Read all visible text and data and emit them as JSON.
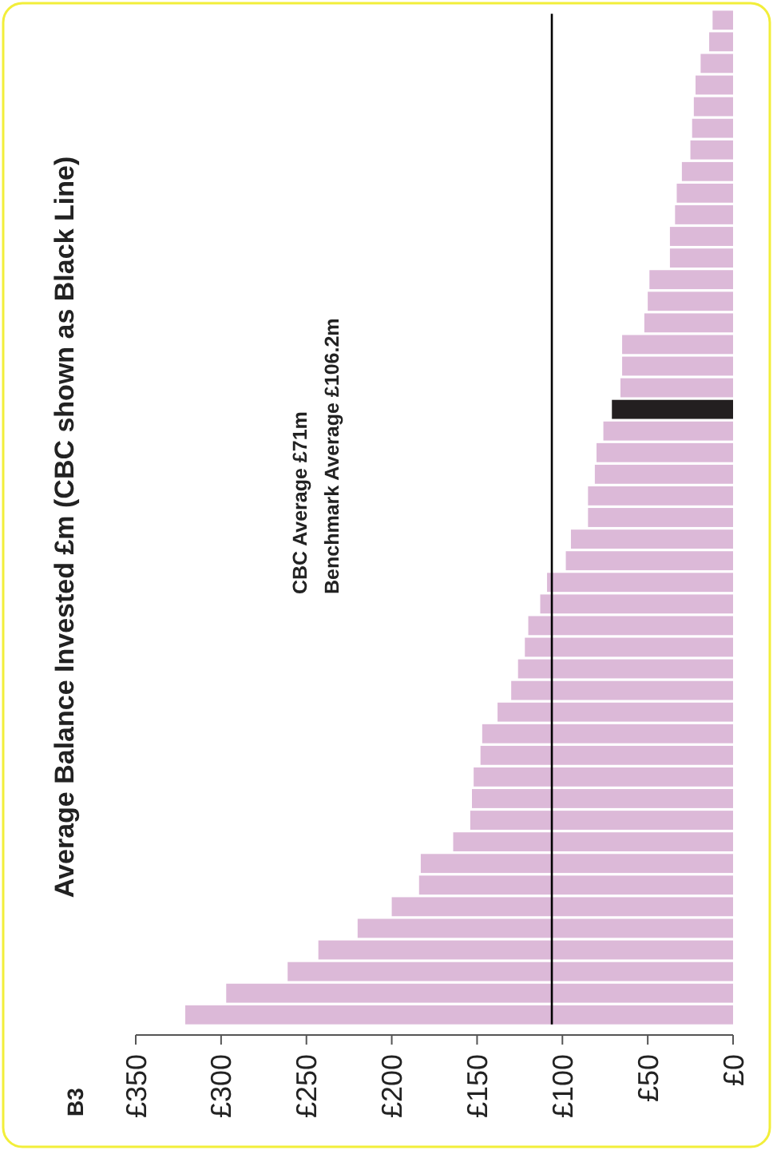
{
  "chart_data": {
    "type": "bar",
    "orientation": "horizontal",
    "title": "Average Balance Invested £m (CBC shown as Black Line)",
    "categories": [
      null,
      null,
      null,
      null,
      null,
      null,
      null,
      null,
      null,
      null,
      null,
      null,
      null,
      null,
      null,
      null,
      null,
      null,
      null,
      null,
      null,
      null,
      null,
      null,
      null,
      null,
      null,
      null,
      null,
      null,
      null,
      null,
      null,
      null,
      null,
      null,
      null,
      null,
      null,
      null,
      null,
      null,
      null,
      null,
      null,
      null,
      null
    ],
    "values": [
      12,
      14,
      19,
      22,
      23,
      24,
      25,
      30,
      33,
      34,
      37,
      37,
      49,
      50,
      52,
      65,
      65,
      66,
      71,
      76,
      80,
      81,
      85,
      85,
      95,
      98,
      109,
      113,
      120,
      122,
      126,
      130,
      138,
      147,
      148,
      152,
      153,
      154,
      164,
      183,
      184,
      200,
      220,
      243,
      261,
      297,
      321
    ],
    "colors": [
      "#dcb9d8",
      "#dcb9d8",
      "#dcb9d8",
      "#dcb9d8",
      "#dcb9d8",
      "#dcb9d8",
      "#dcb9d8",
      "#dcb9d8",
      "#dcb9d8",
      "#dcb9d8",
      "#dcb9d8",
      "#dcb9d8",
      "#dcb9d8",
      "#dcb9d8",
      "#dcb9d8",
      "#dcb9d8",
      "#dcb9d8",
      "#dcb9d8",
      "#231f20",
      "#dcb9d8",
      "#dcb9d8",
      "#dcb9d8",
      "#dcb9d8",
      "#dcb9d8",
      "#dcb9d8",
      "#dcb9d8",
      "#dcb9d8",
      "#dcb9d8",
      "#dcb9d8",
      "#dcb9d8",
      "#dcb9d8",
      "#dcb9d8",
      "#dcb9d8",
      "#dcb9d8",
      "#dcb9d8",
      "#dcb9d8",
      "#dcb9d8",
      "#dcb9d8",
      "#dcb9d8",
      "#dcb9d8",
      "#dcb9d8",
      "#dcb9d8",
      "#dcb9d8",
      "#dcb9d8",
      "#dcb9d8",
      "#dcb9d8",
      "#dcb9d8"
    ],
    "xlim": [
      350,
      0
    ],
    "xticks": [
      {
        "value": 350,
        "label": "£350"
      },
      {
        "value": 300,
        "label": "£300"
      },
      {
        "value": 250,
        "label": "£250"
      },
      {
        "value": 200,
        "label": "£200"
      },
      {
        "value": 150,
        "label": "£150"
      },
      {
        "value": 100,
        "label": "£100"
      },
      {
        "value": 50,
        "label": "£50"
      },
      {
        "value": 0,
        "label": "£0"
      }
    ],
    "ref_lines": [
      {
        "axis": "x",
        "value": 106.2,
        "color": "#000000"
      }
    ],
    "annotations": [
      "B3",
      "CBC Average £71m",
      "Benchmark Average £106.2m"
    ]
  }
}
